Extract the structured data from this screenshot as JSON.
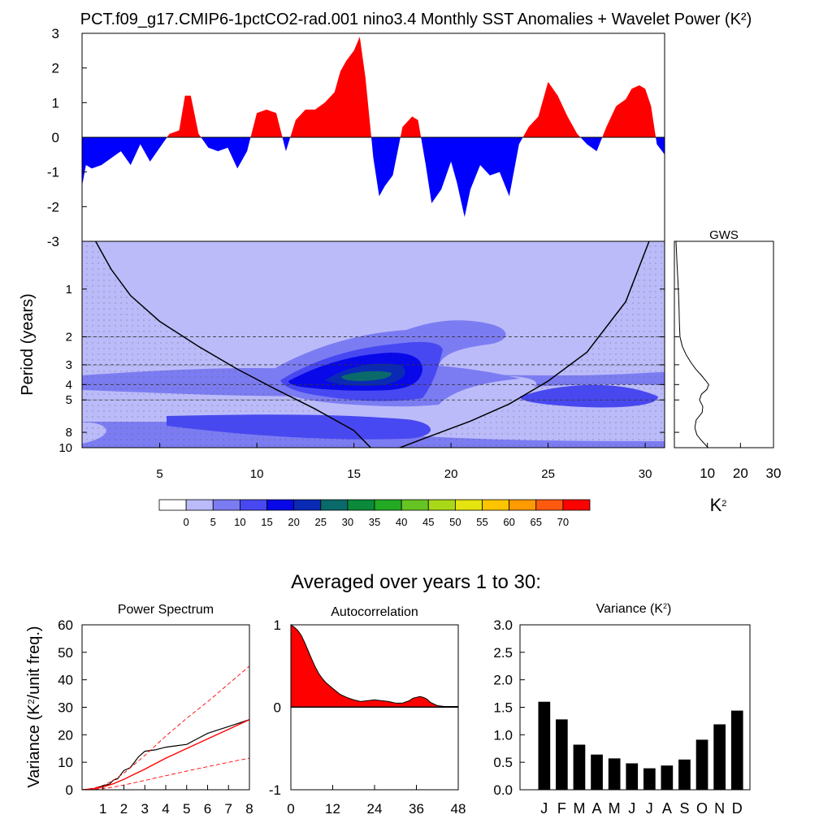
{
  "title": "PCT.f09_g17.CMIP6-1pctCO2-rad.001 nino3.4 Monthly SST Anomalies + Wavelet Power (K²)",
  "section_title": "Averaged over years 1 to 30:",
  "colors": {
    "positive": "#ff0000",
    "negative": "#0000ff"
  },
  "chart_data": [
    {
      "id": "sst_anomaly",
      "type": "area",
      "xlim": [
        1,
        31
      ],
      "ylim": [
        -3,
        3
      ],
      "yticks": [
        "3",
        "2",
        "1",
        "0",
        "-1",
        "-2",
        "-3"
      ],
      "fill_above": "red",
      "fill_below": "blue",
      "x": [
        1,
        1.2,
        1.5,
        2,
        2.5,
        3,
        3.5,
        4,
        4.5,
        5,
        5.5,
        6,
        6.3,
        6.6,
        7,
        7.5,
        8,
        8.5,
        9,
        9.5,
        10,
        10.5,
        11,
        11.5,
        12,
        12.5,
        13,
        13.5,
        14,
        14.3,
        14.6,
        15,
        15.3,
        15.6,
        16,
        16.3,
        16.6,
        17,
        17.5,
        18,
        18.3,
        18.7,
        19,
        19.5,
        20,
        20.3,
        20.7,
        21,
        21.5,
        22,
        22.5,
        23,
        23.5,
        24,
        24.5,
        25,
        25.5,
        26,
        26.5,
        27,
        27.5,
        28,
        28.5,
        29,
        29.3,
        29.7,
        30,
        30.3,
        30.6,
        31
      ],
      "y": [
        -1.4,
        -0.8,
        -0.9,
        -0.8,
        -0.6,
        -0.4,
        -0.8,
        -0.2,
        -0.7,
        -0.3,
        0.1,
        0.2,
        1.2,
        1.2,
        0.1,
        -0.3,
        -0.4,
        -0.3,
        -0.9,
        -0.4,
        0.7,
        0.8,
        0.7,
        -0.4,
        0.5,
        0.8,
        0.8,
        1.0,
        1.3,
        1.9,
        2.2,
        2.5,
        2.9,
        1.7,
        -0.6,
        -1.7,
        -1.4,
        -1.1,
        0.3,
        0.6,
        0.5,
        -0.8,
        -1.9,
        -1.5,
        -0.7,
        -1.3,
        -2.3,
        -1.5,
        -0.8,
        -1.1,
        -1.0,
        -1.7,
        -0.2,
        0.3,
        0.6,
        1.6,
        1.2,
        0.6,
        0.1,
        -0.2,
        -0.4,
        0.3,
        0.9,
        1.1,
        1.4,
        1.5,
        1.4,
        0.9,
        -0.2,
        -0.5
      ]
    },
    {
      "id": "wavelet_power",
      "type": "heatmap",
      "ylabel": "Period (years)",
      "xlim": [
        1,
        31
      ],
      "xticks": [
        5,
        10,
        15,
        20,
        25,
        30
      ],
      "yscale": "log",
      "ylim": [
        0.5,
        10
      ],
      "yticks": [
        1,
        2,
        3,
        4,
        5,
        8,
        10
      ],
      "reference_periods": [
        2,
        3,
        4,
        5
      ],
      "colorbar": {
        "labels": [
          "0",
          "5",
          "10",
          "15",
          "20",
          "25",
          "30",
          "35",
          "40",
          "45",
          "50",
          "55",
          "60",
          "65",
          "70"
        ],
        "colors": [
          "#ffffff",
          "#bbbbfa",
          "#7c7cf2",
          "#4848f2",
          "#0808e8",
          "#0a2ab4",
          "#0a6a6a",
          "#0a8a3a",
          "#22aa22",
          "#66c422",
          "#a8d818",
          "#e4e410",
          "#ffc400",
          "#ff9a00",
          "#ff5a10",
          "#ff0000"
        ]
      },
      "cone_of_influence": {
        "x": [
          1.7,
          2.5,
          3.5,
          5,
          7,
          9,
          11,
          13,
          15,
          16,
          17,
          19,
          21,
          23,
          25,
          27,
          29,
          30.2
        ],
        "period": [
          0.5,
          0.75,
          1.1,
          1.6,
          2.3,
          3.2,
          4.3,
          5.7,
          7.8,
          10.4,
          10.4,
          8.4,
          6.8,
          5.3,
          3.8,
          2.5,
          1.2,
          0.5
        ]
      }
    },
    {
      "id": "global_wavelet_spectrum",
      "type": "line",
      "title": "GWS",
      "xlabel": "K²",
      "xlim": [
        0,
        30
      ],
      "xticks": [
        10,
        20,
        30
      ],
      "period": [
        0.5,
        0.7,
        1,
        1.3,
        1.6,
        2,
        2.3,
        2.6,
        2.9,
        3.2,
        3.5,
        3.8,
        4.0,
        4.3,
        4.6,
        5,
        5.5,
        6,
        6.7,
        7.5,
        8.3,
        9,
        10
      ],
      "power": [
        0.5,
        0.8,
        1.2,
        1.4,
        1.5,
        1.7,
        2.4,
        3.6,
        5.0,
        6.5,
        8.2,
        9.6,
        10.4,
        9.8,
        8.2,
        7.6,
        8.6,
        8.4,
        6.6,
        6.2,
        6.8,
        8.2,
        10.2
      ]
    },
    {
      "id": "power_spectrum",
      "type": "line",
      "title": "Power Spectrum",
      "ylabel": "Variance (K²/unit freq.)",
      "xlim": [
        0,
        8
      ],
      "ylim": [
        0,
        60
      ],
      "xticks": [
        1,
        2,
        3,
        4,
        5,
        6,
        7,
        8
      ],
      "yticks": [
        0,
        10,
        20,
        30,
        40,
        50,
        60
      ],
      "series": [
        {
          "x": [
            0,
            0.5,
            1,
            1.3,
            1.5,
            1.7,
            2,
            2.3,
            2.5,
            2.7,
            3,
            3.5,
            4,
            4.5,
            5,
            5.5,
            6,
            7,
            8
          ],
          "y": [
            0,
            0.2,
            1.5,
            2,
            3.5,
            4,
            7,
            8,
            10,
            12,
            14,
            14.5,
            15.5,
            16,
            16.5,
            18.5,
            20.5,
            23,
            25.5
          ]
        },
        {
          "x": [
            0,
            0.5,
            1,
            1.5,
            2,
            3,
            4,
            5,
            6,
            7,
            8
          ],
          "y": [
            0,
            0.3,
            1,
            2.2,
            3.8,
            7.5,
            11.5,
            15,
            18.5,
            22,
            25.5
          ]
        },
        {
          "x": [
            0,
            0.5,
            1,
            1.5,
            2,
            3,
            4,
            5,
            6,
            7,
            8
          ],
          "y": [
            0,
            0.5,
            1.5,
            3.5,
            6,
            12.5,
            19.5,
            26,
            32,
            38.5,
            45
          ]
        },
        {
          "x": [
            0,
            0.5,
            1,
            1.5,
            2,
            3,
            4,
            5,
            6,
            7,
            8
          ],
          "y": [
            0,
            0.1,
            0.4,
            1,
            1.7,
            3.4,
            5.1,
            6.8,
            8.4,
            10,
            11.5
          ]
        }
      ]
    },
    {
      "id": "autocorrelation",
      "type": "area",
      "title": "Autocorrelation",
      "xlim": [
        0,
        48
      ],
      "ylim": [
        -1,
        1
      ],
      "xticks": [
        0,
        12,
        24,
        36,
        48
      ],
      "yticks": [
        "1",
        "0",
        "-1"
      ],
      "x": [
        0,
        1,
        2,
        3,
        4,
        5,
        6,
        7,
        8,
        9,
        10,
        12,
        14,
        16,
        18,
        20,
        22,
        24,
        26,
        28,
        30,
        32,
        34,
        35,
        36,
        37,
        38,
        39,
        40,
        42,
        44,
        46,
        48
      ],
      "y": [
        1,
        0.97,
        0.93,
        0.87,
        0.78,
        0.68,
        0.58,
        0.49,
        0.41,
        0.35,
        0.3,
        0.23,
        0.16,
        0.12,
        0.09,
        0.07,
        0.08,
        0.09,
        0.08,
        0.07,
        0.05,
        0.05,
        0.08,
        0.11,
        0.12,
        0.13,
        0.12,
        0.1,
        0.06,
        0.02,
        0.01,
        0.01,
        0.01
      ]
    },
    {
      "id": "monthly_variance",
      "type": "bar",
      "title": "Variance (K²)",
      "ylim": [
        0,
        3
      ],
      "yticks": [
        "0.0",
        "0.5",
        "1.0",
        "1.5",
        "2.0",
        "2.5",
        "3.0"
      ],
      "categories": [
        "J",
        "F",
        "M",
        "A",
        "M",
        "J",
        "J",
        "A",
        "S",
        "O",
        "N",
        "D"
      ],
      "values": [
        1.6,
        1.28,
        0.82,
        0.64,
        0.57,
        0.48,
        0.39,
        0.44,
        0.55,
        0.91,
        1.19,
        1.44
      ]
    }
  ]
}
